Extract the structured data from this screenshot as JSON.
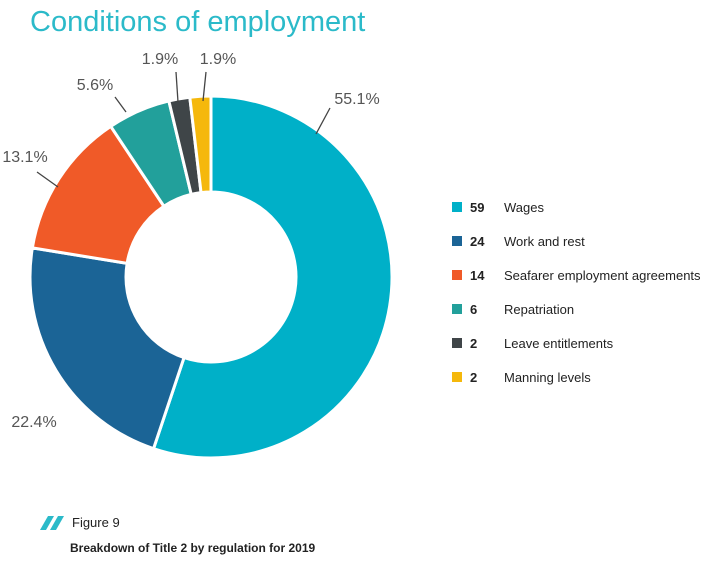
{
  "chart_data": {
    "type": "pie",
    "title": "Conditions of employment",
    "series": [
      {
        "name": "Wages",
        "value": 59,
        "percent_label": "55.1%",
        "color": "#00b0c8"
      },
      {
        "name": "Work and rest",
        "value": 24,
        "percent_label": "22.4%",
        "color": "#1b6496"
      },
      {
        "name": "Seafarer employment agreements",
        "value": 14,
        "percent_label": "13.1%",
        "color": "#f05a28"
      },
      {
        "name": "Repatriation",
        "value": 6,
        "percent_label": "5.6%",
        "color": "#22a09b"
      },
      {
        "name": "Leave entitlements",
        "value": 2,
        "percent_label": "1.9%",
        "color": "#3f4548"
      },
      {
        "name": "Manning levels",
        "value": 2,
        "percent_label": "1.9%",
        "color": "#f5b80c"
      }
    ],
    "donut": true,
    "legend": "right"
  },
  "figure": {
    "label": "Figure 9",
    "caption": "Breakdown of Title 2 by regulation for 2019",
    "mark_color": "#2bbac9"
  }
}
